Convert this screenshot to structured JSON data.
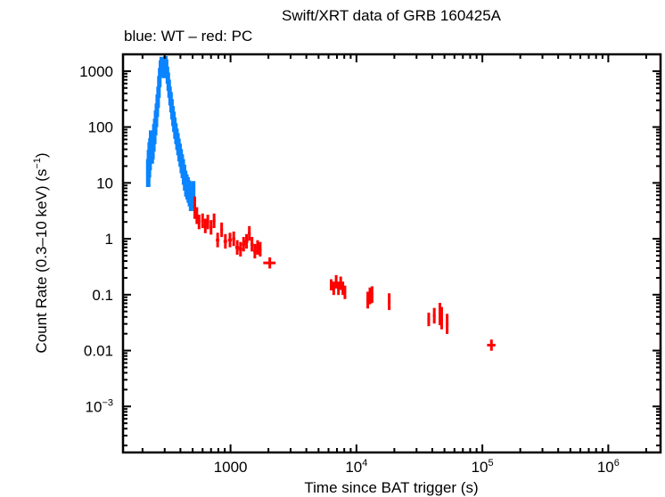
{
  "chart_data": {
    "type": "scatter",
    "title": "Swift/XRT data of GRB 160425A",
    "subtitle": "blue: WT – red: PC",
    "xlabel": "Time since BAT trigger (s)",
    "ylabel": "Count Rate (0.3–10 keV) (s",
    "ylabel_sup": "−1",
    "ylabel_tail": ")",
    "xscale": "log",
    "yscale": "log",
    "xlim": [
      140,
      2600000
    ],
    "ylim": [
      0.00015,
      2000
    ],
    "grid": false,
    "x_ticks": [
      {
        "value": 1000,
        "base": "1000",
        "sup": ""
      },
      {
        "value": 10000,
        "base": "10",
        "sup": "4"
      },
      {
        "value": 100000,
        "base": "10",
        "sup": "5"
      },
      {
        "value": 1000000,
        "base": "10",
        "sup": "6"
      }
    ],
    "y_ticks": [
      {
        "value": 1000,
        "base": "1000",
        "sup": ""
      },
      {
        "value": 100,
        "base": "100",
        "sup": ""
      },
      {
        "value": 10,
        "base": "10",
        "sup": ""
      },
      {
        "value": 1,
        "base": "1",
        "sup": ""
      },
      {
        "value": 0.1,
        "base": "0.1",
        "sup": ""
      },
      {
        "value": 0.01,
        "base": "0.01",
        "sup": ""
      },
      {
        "value": 0.001,
        "base": "10",
        "sup": "−3"
      }
    ],
    "series": [
      {
        "name": "WT",
        "color": "#0a84ff",
        "points": [
          {
            "x": 222,
            "y": 15,
            "xerr": 2,
            "yerr_lo": 0.25,
            "yerr_hi": 0.25
          },
          {
            "x": 225,
            "y": 22,
            "xerr": 2,
            "yerr_lo": 0.25,
            "yerr_hi": 0.25
          },
          {
            "x": 228,
            "y": 30,
            "xerr": 2,
            "yerr_lo": 0.25,
            "yerr_hi": 0.25
          },
          {
            "x": 231,
            "y": 40,
            "xerr": 2,
            "yerr_lo": 0.2,
            "yerr_hi": 0.2
          },
          {
            "x": 234,
            "y": 55,
            "xerr": 2,
            "yerr_lo": 0.2,
            "yerr_hi": 0.2
          },
          {
            "x": 237,
            "y": 35,
            "xerr": 2,
            "yerr_lo": 0.2,
            "yerr_hi": 0.2
          },
          {
            "x": 240,
            "y": 42,
            "xerr": 2,
            "yerr_lo": 0.2,
            "yerr_hi": 0.2
          },
          {
            "x": 244,
            "y": 55,
            "xerr": 2,
            "yerr_lo": 0.18,
            "yerr_hi": 0.18
          },
          {
            "x": 248,
            "y": 75,
            "xerr": 2,
            "yerr_lo": 0.18,
            "yerr_hi": 0.18
          },
          {
            "x": 252,
            "y": 100,
            "xerr": 2,
            "yerr_lo": 0.15,
            "yerr_hi": 0.15
          },
          {
            "x": 256,
            "y": 140,
            "xerr": 2,
            "yerr_lo": 0.15,
            "yerr_hi": 0.15
          },
          {
            "x": 260,
            "y": 200,
            "xerr": 2,
            "yerr_lo": 0.12,
            "yerr_hi": 0.12
          },
          {
            "x": 264,
            "y": 290,
            "xerr": 2,
            "yerr_lo": 0.12,
            "yerr_hi": 0.12
          },
          {
            "x": 268,
            "y": 420,
            "xerr": 2,
            "yerr_lo": 0.1,
            "yerr_hi": 0.1
          },
          {
            "x": 272,
            "y": 650,
            "xerr": 2,
            "yerr_lo": 0.1,
            "yerr_hi": 0.1
          },
          {
            "x": 276,
            "y": 950,
            "xerr": 2,
            "yerr_lo": 0.08,
            "yerr_hi": 0.08
          },
          {
            "x": 280,
            "y": 1300,
            "xerr": 2,
            "yerr_lo": 0.08,
            "yerr_hi": 0.08
          },
          {
            "x": 284,
            "y": 1500,
            "xerr": 2,
            "yerr_lo": 0.08,
            "yerr_hi": 0.08
          },
          {
            "x": 288,
            "y": 1400,
            "xerr": 2,
            "yerr_lo": 0.08,
            "yerr_hi": 0.08
          },
          {
            "x": 292,
            "y": 1100,
            "xerr": 2,
            "yerr_lo": 0.08,
            "yerr_hi": 0.08
          },
          {
            "x": 296,
            "y": 900,
            "xerr": 2,
            "yerr_lo": 0.08,
            "yerr_hi": 0.08
          },
          {
            "x": 300,
            "y": 1200,
            "xerr": 2,
            "yerr_lo": 0.08,
            "yerr_hi": 0.08
          },
          {
            "x": 304,
            "y": 1550,
            "xerr": 2,
            "yerr_lo": 0.08,
            "yerr_hi": 0.08
          },
          {
            "x": 308,
            "y": 1350,
            "xerr": 2,
            "yerr_lo": 0.08,
            "yerr_hi": 0.08
          },
          {
            "x": 313,
            "y": 1000,
            "xerr": 2,
            "yerr_lo": 0.08,
            "yerr_hi": 0.08
          },
          {
            "x": 318,
            "y": 750,
            "xerr": 2,
            "yerr_lo": 0.1,
            "yerr_hi": 0.1
          },
          {
            "x": 323,
            "y": 560,
            "xerr": 2,
            "yerr_lo": 0.1,
            "yerr_hi": 0.1
          },
          {
            "x": 328,
            "y": 420,
            "xerr": 2,
            "yerr_lo": 0.1,
            "yerr_hi": 0.1
          },
          {
            "x": 334,
            "y": 320,
            "xerr": 2,
            "yerr_lo": 0.12,
            "yerr_hi": 0.12
          },
          {
            "x": 340,
            "y": 240,
            "xerr": 2,
            "yerr_lo": 0.12,
            "yerr_hi": 0.12
          },
          {
            "x": 346,
            "y": 180,
            "xerr": 2,
            "yerr_lo": 0.12,
            "yerr_hi": 0.12
          },
          {
            "x": 352,
            "y": 140,
            "xerr": 2,
            "yerr_lo": 0.13,
            "yerr_hi": 0.13
          },
          {
            "x": 358,
            "y": 110,
            "xerr": 2,
            "yerr_lo": 0.13,
            "yerr_hi": 0.13
          },
          {
            "x": 365,
            "y": 85,
            "xerr": 2,
            "yerr_lo": 0.14,
            "yerr_hi": 0.14
          },
          {
            "x": 372,
            "y": 68,
            "xerr": 2,
            "yerr_lo": 0.14,
            "yerr_hi": 0.14
          },
          {
            "x": 379,
            "y": 55,
            "xerr": 2,
            "yerr_lo": 0.15,
            "yerr_hi": 0.15
          },
          {
            "x": 386,
            "y": 44,
            "xerr": 2,
            "yerr_lo": 0.15,
            "yerr_hi": 0.15
          },
          {
            "x": 394,
            "y": 35,
            "xerr": 2,
            "yerr_lo": 0.16,
            "yerr_hi": 0.16
          },
          {
            "x": 402,
            "y": 28,
            "xerr": 2,
            "yerr_lo": 0.16,
            "yerr_hi": 0.16
          },
          {
            "x": 410,
            "y": 22,
            "xerr": 2,
            "yerr_lo": 0.17,
            "yerr_hi": 0.17
          },
          {
            "x": 418,
            "y": 18,
            "xerr": 2,
            "yerr_lo": 0.17,
            "yerr_hi": 0.17
          },
          {
            "x": 427,
            "y": 14,
            "xerr": 2,
            "yerr_lo": 0.18,
            "yerr_hi": 0.18
          },
          {
            "x": 436,
            "y": 11,
            "xerr": 2,
            "yerr_lo": 0.18,
            "yerr_hi": 0.18
          },
          {
            "x": 446,
            "y": 9,
            "xerr": 2,
            "yerr_lo": 0.2,
            "yerr_hi": 0.2
          },
          {
            "x": 456,
            "y": 8,
            "xerr": 2,
            "yerr_lo": 0.2,
            "yerr_hi": 0.2
          },
          {
            "x": 466,
            "y": 7,
            "xerr": 2,
            "yerr_lo": 0.2,
            "yerr_hi": 0.2
          },
          {
            "x": 476,
            "y": 6,
            "xerr": 2,
            "yerr_lo": 0.2,
            "yerr_hi": 0.2
          },
          {
            "x": 486,
            "y": 5.2,
            "xerr": 2,
            "yerr_lo": 0.22,
            "yerr_hi": 0.22
          },
          {
            "x": 496,
            "y": 5.8,
            "xerr": 2,
            "yerr_lo": 0.22,
            "yerr_hi": 0.22
          },
          {
            "x": 505,
            "y": 6.5,
            "xerr": 2,
            "yerr_lo": 0.22,
            "yerr_hi": 0.22
          }
        ]
      },
      {
        "name": "PC",
        "color": "#ff0000",
        "points": [
          {
            "x": 520,
            "y": 3.6,
            "xerr": 8,
            "yerr_lo": 0.2,
            "yerr_hi": 0.2
          },
          {
            "x": 540,
            "y": 2.6,
            "xerr": 8,
            "yerr_lo": 0.15,
            "yerr_hi": 0.15
          },
          {
            "x": 562,
            "y": 2.0,
            "xerr": 12,
            "yerr_lo": 0.13,
            "yerr_hi": 0.13
          },
          {
            "x": 600,
            "y": 2.1,
            "xerr": 14,
            "yerr_lo": 0.13,
            "yerr_hi": 0.13
          },
          {
            "x": 630,
            "y": 1.7,
            "xerr": 14,
            "yerr_lo": 0.13,
            "yerr_hi": 0.13
          },
          {
            "x": 660,
            "y": 2.0,
            "xerr": 14,
            "yerr_lo": 0.13,
            "yerr_hi": 0.13
          },
          {
            "x": 700,
            "y": 1.6,
            "xerr": 16,
            "yerr_lo": 0.13,
            "yerr_hi": 0.13
          },
          {
            "x": 740,
            "y": 2.1,
            "xerr": 18,
            "yerr_lo": 0.13,
            "yerr_hi": 0.13
          },
          {
            "x": 790,
            "y": 0.95,
            "xerr": 25,
            "yerr_lo": 0.13,
            "yerr_hi": 0.13
          },
          {
            "x": 850,
            "y": 1.45,
            "xerr": 20,
            "yerr_lo": 0.13,
            "yerr_hi": 0.13
          },
          {
            "x": 910,
            "y": 0.9,
            "xerr": 30,
            "yerr_lo": 0.13,
            "yerr_hi": 0.13
          },
          {
            "x": 990,
            "y": 0.95,
            "xerr": 35,
            "yerr_lo": 0.13,
            "yerr_hi": 0.13
          },
          {
            "x": 1060,
            "y": 1.0,
            "xerr": 30,
            "yerr_lo": 0.13,
            "yerr_hi": 0.13
          },
          {
            "x": 1130,
            "y": 0.7,
            "xerr": 40,
            "yerr_lo": 0.13,
            "yerr_hi": 0.13
          },
          {
            "x": 1200,
            "y": 0.65,
            "xerr": 40,
            "yerr_lo": 0.13,
            "yerr_hi": 0.13
          },
          {
            "x": 1270,
            "y": 0.8,
            "xerr": 40,
            "yerr_lo": 0.13,
            "yerr_hi": 0.13
          },
          {
            "x": 1340,
            "y": 0.9,
            "xerr": 45,
            "yerr_lo": 0.13,
            "yerr_hi": 0.13
          },
          {
            "x": 1410,
            "y": 1.25,
            "xerr": 35,
            "yerr_lo": 0.13,
            "yerr_hi": 0.13
          },
          {
            "x": 1480,
            "y": 0.8,
            "xerr": 40,
            "yerr_lo": 0.13,
            "yerr_hi": 0.13
          },
          {
            "x": 1560,
            "y": 0.6,
            "xerr": 45,
            "yerr_lo": 0.13,
            "yerr_hi": 0.13
          },
          {
            "x": 1640,
            "y": 0.7,
            "xerr": 45,
            "yerr_lo": 0.13,
            "yerr_hi": 0.13
          },
          {
            "x": 1720,
            "y": 0.65,
            "xerr": 45,
            "yerr_lo": 0.13,
            "yerr_hi": 0.13
          },
          {
            "x": 2050,
            "y": 0.37,
            "xerr": 230,
            "yerr_lo": 0.1,
            "yerr_hi": 0.1
          },
          {
            "x": 6300,
            "y": 0.15,
            "xerr": 120,
            "yerr_lo": 0.1,
            "yerr_hi": 0.1
          },
          {
            "x": 6600,
            "y": 0.13,
            "xerr": 120,
            "yerr_lo": 0.12,
            "yerr_hi": 0.12
          },
          {
            "x": 6900,
            "y": 0.17,
            "xerr": 120,
            "yerr_lo": 0.12,
            "yerr_hi": 0.12
          },
          {
            "x": 7200,
            "y": 0.13,
            "xerr": 120,
            "yerr_lo": 0.12,
            "yerr_hi": 0.12
          },
          {
            "x": 7500,
            "y": 0.16,
            "xerr": 120,
            "yerr_lo": 0.12,
            "yerr_hi": 0.12
          },
          {
            "x": 7800,
            "y": 0.13,
            "xerr": 120,
            "yerr_lo": 0.12,
            "yerr_hi": 0.12
          },
          {
            "x": 8100,
            "y": 0.11,
            "xerr": 120,
            "yerr_lo": 0.12,
            "yerr_hi": 0.12
          },
          {
            "x": 12300,
            "y": 0.08,
            "xerr": 200,
            "yerr_lo": 0.15,
            "yerr_hi": 0.15
          },
          {
            "x": 12800,
            "y": 0.095,
            "xerr": 200,
            "yerr_lo": 0.15,
            "yerr_hi": 0.15
          },
          {
            "x": 13300,
            "y": 0.1,
            "xerr": 200,
            "yerr_lo": 0.15,
            "yerr_hi": 0.15
          },
          {
            "x": 18200,
            "y": 0.075,
            "xerr": 250,
            "yerr_lo": 0.15,
            "yerr_hi": 0.15
          },
          {
            "x": 37500,
            "y": 0.036,
            "xerr": 800,
            "yerr_lo": 0.12,
            "yerr_hi": 0.12
          },
          {
            "x": 41500,
            "y": 0.042,
            "xerr": 800,
            "yerr_lo": 0.14,
            "yerr_hi": 0.14
          },
          {
            "x": 46000,
            "y": 0.045,
            "xerr": 800,
            "yerr_lo": 0.2,
            "yerr_hi": 0.2
          },
          {
            "x": 47500,
            "y": 0.038,
            "xerr": 800,
            "yerr_lo": 0.2,
            "yerr_hi": 0.2
          },
          {
            "x": 52500,
            "y": 0.03,
            "xerr": 900,
            "yerr_lo": 0.18,
            "yerr_hi": 0.18
          },
          {
            "x": 118000,
            "y": 0.0125,
            "xerr": 9000,
            "yerr_lo": 0.1,
            "yerr_hi": 0.1
          }
        ]
      }
    ]
  }
}
